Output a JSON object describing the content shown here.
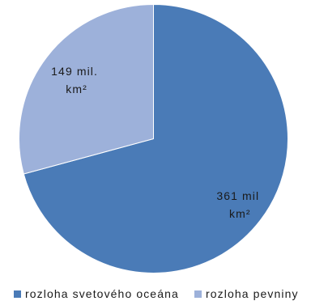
{
  "chart_data": {
    "type": "pie",
    "title": "",
    "legend_position": "bottom",
    "slices": [
      {
        "label": "rozloha svetového oceána",
        "value": 361,
        "color": "#4A7BB7",
        "data_label": [
          "361 mil",
          "km²"
        ]
      },
      {
        "label": "rozloha pevniny",
        "value": 149,
        "color": "#9DB1DA",
        "data_label": [
          "149 mil.",
          "km²"
        ]
      }
    ]
  },
  "colors": {
    "background": "#FFFFFF",
    "text": "#1A1A1A"
  }
}
